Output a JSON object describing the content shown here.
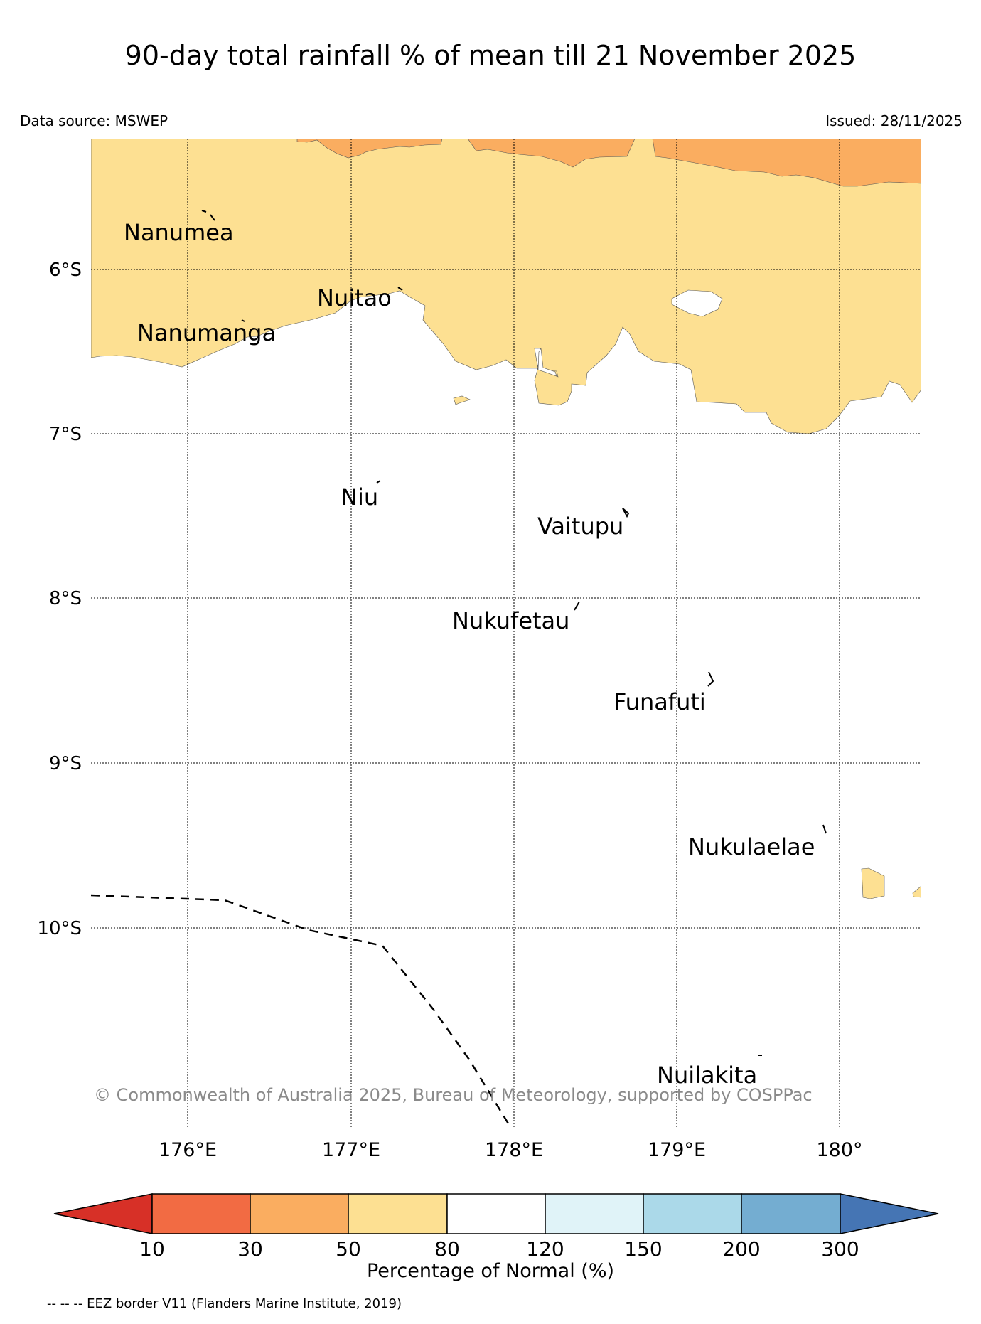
{
  "title": "90-day total rainfall % of mean till 21 November 2025",
  "data_source": "Data source: MSWEP",
  "issued": "Issued: 28/11/2025",
  "copyright": "© Commonwealth of Australia 2025, Bureau of Meteorology, supported by COSPPac",
  "colors": {
    "c10_30": "#f26b43",
    "c30_50": "#faad60",
    "c50_80": "#fde092",
    "c80_120": "#ffffff",
    "c120_150": "#e0f3f8",
    "c150_200": "#abd9e9",
    "c200_300": "#74add1",
    "above_300": "#4575b4",
    "below_10": "#d73027"
  },
  "map": {
    "lat_labels": [
      "6°S",
      "7°S",
      "8°S",
      "9°S",
      "10°S"
    ],
    "lon_labels": [
      "176°E",
      "177°E",
      "178°E",
      "179°E",
      "180°"
    ],
    "places": [
      "Nanumea",
      "Nuitao",
      "Nanumanga",
      "Niu",
      "Vaitupu",
      "Nukufetau",
      "Funafuti",
      "Nukulaelae",
      "Nuilakita"
    ]
  },
  "colorbar": {
    "ticks": [
      "10",
      "30",
      "50",
      "80",
      "120",
      "150",
      "200",
      "300"
    ],
    "label": "Percentage of Normal (%)"
  },
  "eez_note": "-- -- -- EEZ border V11 (Flanders Marine Institute, 2019)"
}
